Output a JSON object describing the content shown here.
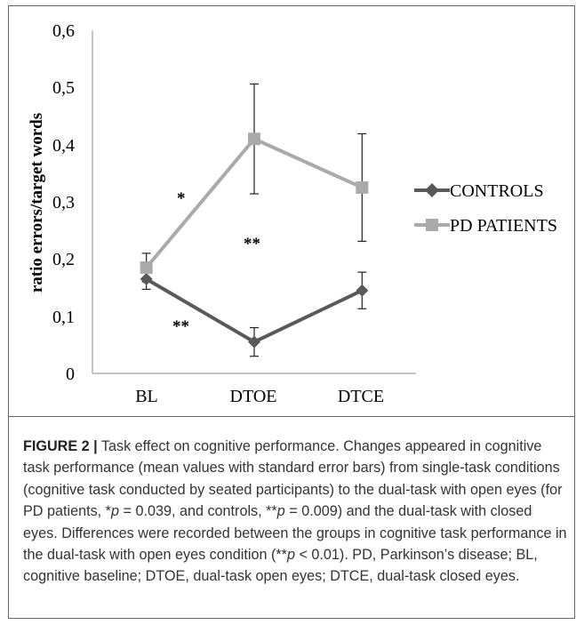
{
  "chart_data": {
    "type": "line",
    "categories": [
      "BL",
      "DTOE",
      "DTCE"
    ],
    "ylabel": "ratio errors/target words",
    "ylim": [
      0,
      0.6
    ],
    "yticks": [
      "0",
      "0,1",
      "0,2",
      "0,3",
      "0,4",
      "0,5",
      "0,6"
    ],
    "series": [
      {
        "name": "CONTROLS",
        "values": [
          0.165,
          0.055,
          0.145
        ],
        "errors": [
          0.018,
          0.025,
          0.032
        ],
        "color": "#595959",
        "marker": "diamond"
      },
      {
        "name": "PD PATIENTS",
        "values": [
          0.185,
          0.41,
          0.325
        ],
        "errors": [
          0.025,
          0.096,
          0.094
        ],
        "color": "#aaaaaa",
        "marker": "square"
      }
    ],
    "annotations": [
      "*",
      "**",
      "**"
    ],
    "legend_position": "right",
    "grid": false
  },
  "caption": {
    "label": "FIGURE 2 |",
    "text1": " Task effect on cognitive performance. Changes appeared in cognitive task performance (mean values with standard error bars) from single-task conditions (cognitive task conducted by seated participants) to the dual-task with open eyes (for PD patients, *",
    "p1": "p",
    "text2": " = 0.039, and controls, **",
    "p2": "p",
    "text3": " = 0.009) and the dual-task with closed eyes. Differences were recorded between the groups in cognitive task performance in the dual-task with open eyes condition (**",
    "p3": "p",
    "text4": " < 0.01). PD, Parkinson’s disease; BL, cognitive baseline; DTOE, dual-task open eyes; DTCE, dual-task closed eyes."
  }
}
